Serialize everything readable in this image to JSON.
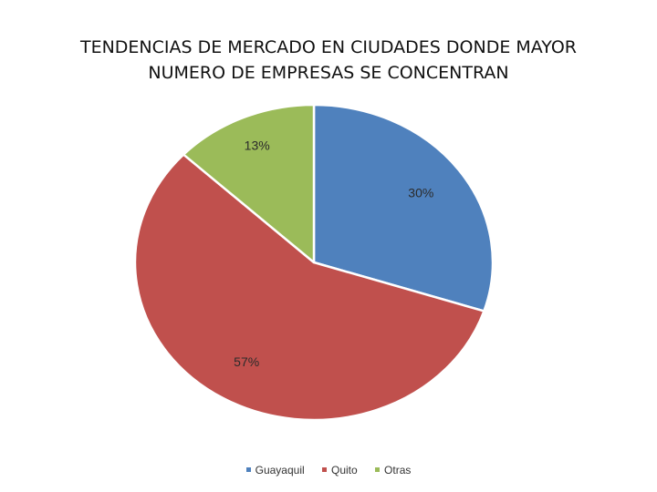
{
  "chart_data": {
    "type": "pie",
    "title_lines": [
      "TENDENCIAS DE MERCADO EN CIUDADES DONDE MAYOR",
      "NUMERO DE EMPRESAS SE CONCENTRAN"
    ],
    "slices": [
      {
        "name": "Guayaquil",
        "value": 30,
        "label": "30%",
        "color": "#4f81bd"
      },
      {
        "name": "Quito",
        "value": 57,
        "label": "57%",
        "color": "#c0504d"
      },
      {
        "name": "Otras",
        "value": 13,
        "label": "13%",
        "color": "#9bbb59"
      }
    ],
    "legend_position": "bottom"
  }
}
